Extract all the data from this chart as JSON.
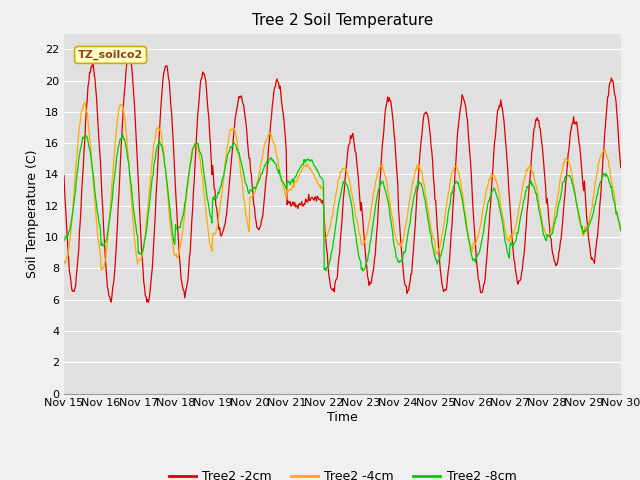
{
  "title": "Tree 2 Soil Temperature",
  "xlabel": "Time",
  "ylabel": "Soil Temperature (C)",
  "ylim": [
    0,
    23
  ],
  "yticks": [
    0,
    2,
    4,
    6,
    8,
    10,
    12,
    14,
    16,
    18,
    20,
    22
  ],
  "xtick_labels": [
    "Nov 15",
    "Nov 16",
    "Nov 17",
    "Nov 18",
    "Nov 19",
    "Nov 20",
    "Nov 21",
    "Nov 22",
    "Nov 23",
    "Nov 24",
    "Nov 25",
    "Nov 26",
    "Nov 27",
    "Nov 28",
    "Nov 29",
    "Nov 30"
  ],
  "legend_label": "TZ_soilco2",
  "series_labels": [
    "Tree2 -2cm",
    "Tree2 -4cm",
    "Tree2 -8cm"
  ],
  "series_colors": [
    "#dd0000",
    "#ffaa00",
    "#00cc00"
  ],
  "fig_bg_color": "#f0f0f0",
  "plot_bg_color": "#e0e0e0",
  "grid_color": "#ffffff",
  "title_fontsize": 11,
  "axis_fontsize": 9,
  "tick_fontsize": 8,
  "legend_fontsize": 9,
  "n_days": 15,
  "pts_per_day": 48,
  "day_peaks_2cm": [
    21.0,
    21.5,
    21.0,
    20.5,
    19.0,
    20.0,
    12.5,
    16.5,
    19.0,
    18.0,
    19.0,
    18.5,
    17.5,
    17.5,
    20.0
  ],
  "day_troughs_2cm": [
    6.5,
    6.0,
    5.8,
    6.3,
    10.2,
    10.5,
    12.0,
    6.5,
    7.0,
    6.5,
    6.5,
    6.5,
    7.0,
    8.3,
    8.5
  ],
  "day_peaks_4cm": [
    18.5,
    18.5,
    17.0,
    16.0,
    17.0,
    16.5,
    14.5,
    14.5,
    14.5,
    14.5,
    14.5,
    14.0,
    14.5,
    15.0,
    15.5
  ],
  "day_troughs_4cm": [
    8.5,
    8.0,
    8.5,
    8.8,
    10.2,
    12.5,
    13.0,
    10.0,
    9.5,
    9.5,
    9.0,
    9.5,
    10.0,
    10.0,
    10.5
  ],
  "day_peaks_8cm": [
    16.5,
    16.5,
    16.0,
    16.0,
    16.0,
    15.0,
    15.0,
    13.5,
    13.5,
    13.5,
    13.5,
    13.0,
    13.5,
    14.0,
    14.0
  ],
  "day_troughs_8cm": [
    10.0,
    9.5,
    9.0,
    10.5,
    12.5,
    13.0,
    13.5,
    8.0,
    8.0,
    8.5,
    8.5,
    8.5,
    9.5,
    10.0,
    10.5
  ]
}
